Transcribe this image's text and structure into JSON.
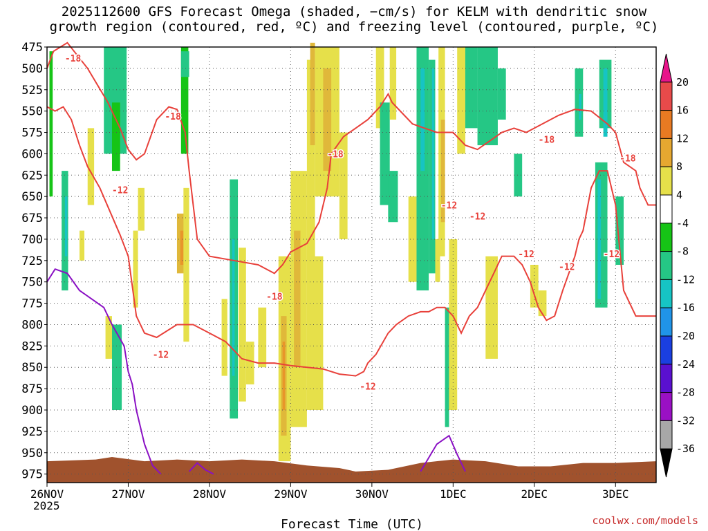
{
  "chart_data": {
    "type": "heatmap",
    "title_line1": "2025112600 GFS Forecast Omega (shaded, −cm/s) for KELM with dendritic snow",
    "title_line2": "growth region (contoured, red, ºC) and freezing level (contoured, purple, ºC)",
    "xlabel": "Forecast Time (UTC)",
    "x_ticks": [
      "26NOV",
      "27NOV",
      "28NOV",
      "29NOV",
      "30NOV",
      "1DEC",
      "2DEC",
      "3DEC"
    ],
    "x_year": "2025",
    "x_range": [
      0,
      7.5
    ],
    "y_ticks": [
      "475",
      "500",
      "525",
      "550",
      "575",
      "600",
      "625",
      "650",
      "675",
      "700",
      "725",
      "750",
      "775",
      "800",
      "825",
      "850",
      "875",
      "900",
      "925",
      "950",
      "975"
    ],
    "y_range": [
      475,
      985
    ],
    "y_inverted": true,
    "grid": "dotted",
    "colorbar": {
      "labels": [
        "20",
        "16",
        "12",
        "8",
        "4",
        "-4",
        "-8",
        "-12",
        "-16",
        "-20",
        "-24",
        "-28",
        "-32",
        "-36"
      ],
      "colors": [
        "#e8158b",
        "#e84a4a",
        "#e87a22",
        "#e6a830",
        "#e6e04a",
        "#ffffff",
        "#16c416",
        "#25c785",
        "#16c4c4",
        "#2094e8",
        "#1a3fe0",
        "#5a10d0",
        "#9a10c4",
        "#a8a8a8",
        "#000000"
      ]
    },
    "omega_regions": [
      {
        "t0": 0.03,
        "t1": 0.07,
        "p0": 480,
        "p1": 650,
        "level": "-4"
      },
      {
        "t0": 0.18,
        "t1": 0.26,
        "p0": 620,
        "p1": 760,
        "level": "-8"
      },
      {
        "t0": 0.22,
        "t1": 0.25,
        "p0": 650,
        "p1": 720,
        "level": "-12"
      },
      {
        "t0": 0.4,
        "t1": 0.46,
        "p0": 690,
        "p1": 725,
        "level": "4"
      },
      {
        "t0": 0.5,
        "t1": 0.58,
        "p0": 570,
        "p1": 660,
        "level": "4"
      },
      {
        "t0": 0.7,
        "t1": 0.98,
        "p0": 475,
        "p1": 600,
        "level": "-8"
      },
      {
        "t0": 0.8,
        "t1": 0.9,
        "p0": 540,
        "p1": 620,
        "level": "-4"
      },
      {
        "t0": 0.72,
        "t1": 0.8,
        "p0": 790,
        "p1": 840,
        "level": "4"
      },
      {
        "t0": 0.8,
        "t1": 0.92,
        "p0": 800,
        "p1": 900,
        "level": "-8"
      },
      {
        "t0": 1.06,
        "t1": 1.12,
        "p0": 690,
        "p1": 780,
        "level": "4"
      },
      {
        "t0": 1.12,
        "t1": 1.2,
        "p0": 640,
        "p1": 690,
        "level": "4"
      },
      {
        "t0": 1.65,
        "t1": 1.74,
        "p0": 475,
        "p1": 600,
        "level": "-4"
      },
      {
        "t0": 1.65,
        "t1": 1.75,
        "p0": 480,
        "p1": 510,
        "level": "-8"
      },
      {
        "t0": 1.6,
        "t1": 1.72,
        "p0": 670,
        "p1": 740,
        "level": "8"
      },
      {
        "t0": 1.64,
        "t1": 1.68,
        "p0": 690,
        "p1": 730,
        "level": "12"
      },
      {
        "t0": 1.68,
        "t1": 1.75,
        "p0": 640,
        "p1": 820,
        "level": "4"
      },
      {
        "t0": 2.15,
        "t1": 2.22,
        "p0": 770,
        "p1": 860,
        "level": "4"
      },
      {
        "t0": 2.25,
        "t1": 2.35,
        "p0": 630,
        "p1": 910,
        "level": "-8"
      },
      {
        "t0": 2.28,
        "t1": 2.31,
        "p0": 700,
        "p1": 860,
        "level": "-12"
      },
      {
        "t0": 2.36,
        "t1": 2.45,
        "p0": 710,
        "p1": 890,
        "level": "4"
      },
      {
        "t0": 2.45,
        "t1": 2.55,
        "p0": 820,
        "p1": 870,
        "level": "4"
      },
      {
        "t0": 2.6,
        "t1": 2.7,
        "p0": 780,
        "p1": 850,
        "level": "4"
      },
      {
        "t0": 2.85,
        "t1": 3.0,
        "p0": 720,
        "p1": 960,
        "level": "4"
      },
      {
        "t0": 2.88,
        "t1": 2.95,
        "p0": 790,
        "p1": 930,
        "level": "8"
      },
      {
        "t0": 2.9,
        "t1": 2.93,
        "p0": 820,
        "p1": 900,
        "level": "12"
      },
      {
        "t0": 3.0,
        "t1": 3.2,
        "p0": 620,
        "p1": 920,
        "level": "4"
      },
      {
        "t0": 3.04,
        "t1": 3.12,
        "p0": 690,
        "p1": 850,
        "level": "8"
      },
      {
        "t0": 3.2,
        "t1": 3.4,
        "p0": 720,
        "p1": 900,
        "level": "4"
      },
      {
        "t0": 3.2,
        "t1": 3.3,
        "p0": 490,
        "p1": 730,
        "level": "4"
      },
      {
        "t0": 3.24,
        "t1": 3.3,
        "p0": 470,
        "p1": 590,
        "level": "8"
      },
      {
        "t0": 3.3,
        "t1": 3.6,
        "p0": 475,
        "p1": 650,
        "level": "4"
      },
      {
        "t0": 3.4,
        "t1": 3.5,
        "p0": 500,
        "p1": 620,
        "level": "8"
      },
      {
        "t0": 3.6,
        "t1": 3.7,
        "p0": 575,
        "p1": 700,
        "level": "4"
      },
      {
        "t0": 4.05,
        "t1": 4.15,
        "p0": 475,
        "p1": 570,
        "level": "4"
      },
      {
        "t0": 4.1,
        "t1": 4.22,
        "p0": 540,
        "p1": 660,
        "level": "-8"
      },
      {
        "t0": 4.2,
        "t1": 4.32,
        "p0": 620,
        "p1": 680,
        "level": "-8"
      },
      {
        "t0": 4.22,
        "t1": 4.3,
        "p0": 475,
        "p1": 560,
        "level": "4"
      },
      {
        "t0": 4.45,
        "t1": 4.55,
        "p0": 650,
        "p1": 750,
        "level": "4"
      },
      {
        "t0": 4.55,
        "t1": 4.7,
        "p0": 475,
        "p1": 760,
        "level": "-8"
      },
      {
        "t0": 4.6,
        "t1": 4.65,
        "p0": 500,
        "p1": 620,
        "level": "-12"
      },
      {
        "t0": 4.7,
        "t1": 4.78,
        "p0": 490,
        "p1": 740,
        "level": "-8"
      },
      {
        "t0": 4.74,
        "t1": 4.77,
        "p0": 500,
        "p1": 700,
        "level": "-12"
      },
      {
        "t0": 4.78,
        "t1": 4.84,
        "p0": 700,
        "p1": 750,
        "level": "4"
      },
      {
        "t0": 4.82,
        "t1": 4.9,
        "p0": 475,
        "p1": 720,
        "level": "4"
      },
      {
        "t0": 4.85,
        "t1": 4.9,
        "p0": 560,
        "p1": 680,
        "level": "8"
      },
      {
        "t0": 4.9,
        "t1": 4.95,
        "p0": 780,
        "p1": 920,
        "level": "-8"
      },
      {
        "t0": 4.95,
        "t1": 5.05,
        "p0": 700,
        "p1": 900,
        "level": "4"
      },
      {
        "t0": 5.1,
        "t1": 5.3,
        "p0": 475,
        "p1": 570,
        "level": "-8"
      },
      {
        "t0": 5.05,
        "t1": 5.15,
        "p0": 475,
        "p1": 600,
        "level": "4"
      },
      {
        "t0": 5.3,
        "t1": 5.55,
        "p0": 475,
        "p1": 590,
        "level": "-8"
      },
      {
        "t0": 5.55,
        "t1": 5.65,
        "p0": 500,
        "p1": 560,
        "level": "-8"
      },
      {
        "t0": 5.4,
        "t1": 5.55,
        "p0": 720,
        "p1": 840,
        "level": "4"
      },
      {
        "t0": 5.75,
        "t1": 5.85,
        "p0": 600,
        "p1": 650,
        "level": "-8"
      },
      {
        "t0": 5.95,
        "t1": 6.05,
        "p0": 730,
        "p1": 780,
        "level": "4"
      },
      {
        "t0": 6.05,
        "t1": 6.15,
        "p0": 760,
        "p1": 790,
        "level": "4"
      },
      {
        "t0": 6.5,
        "t1": 6.6,
        "p0": 500,
        "p1": 580,
        "level": "-8"
      },
      {
        "t0": 6.55,
        "t1": 6.58,
        "p0": 530,
        "p1": 560,
        "level": "-12"
      },
      {
        "t0": 6.75,
        "t1": 6.9,
        "p0": 610,
        "p1": 780,
        "level": "-8"
      },
      {
        "t0": 6.78,
        "t1": 6.82,
        "p0": 630,
        "p1": 770,
        "level": "-12"
      },
      {
        "t0": 6.8,
        "t1": 6.95,
        "p0": 490,
        "p1": 570,
        "level": "-8"
      },
      {
        "t0": 6.85,
        "t1": 6.9,
        "p0": 500,
        "p1": 580,
        "level": "-12"
      },
      {
        "t0": 7.0,
        "t1": 7.1,
        "p0": 650,
        "p1": 730,
        "level": "-8"
      }
    ],
    "dgz_contour_labels": [
      {
        "text": "-18",
        "t": 0.32,
        "p": 488
      },
      {
        "text": "-18",
        "t": 1.55,
        "p": 556
      },
      {
        "text": "-12",
        "t": 0.9,
        "p": 642
      },
      {
        "text": "-12",
        "t": 1.4,
        "p": 835
      },
      {
        "text": "-18",
        "t": 3.55,
        "p": 600
      },
      {
        "text": "-18",
        "t": 2.8,
        "p": 767
      },
      {
        "text": "-12",
        "t": 3.95,
        "p": 872
      },
      {
        "text": "-12",
        "t": 4.95,
        "p": 660
      },
      {
        "text": "-12",
        "t": 5.3,
        "p": 673
      },
      {
        "text": "-18",
        "t": 6.15,
        "p": 583
      },
      {
        "text": "-12",
        "t": 5.9,
        "p": 717
      },
      {
        "text": "-12",
        "t": 6.4,
        "p": 732
      },
      {
        "text": "-12",
        "t": 6.95,
        "p": 717
      },
      {
        "text": "-18",
        "t": 7.15,
        "p": 605
      }
    ],
    "dgz_minus18_top": [
      [
        0.0,
        500
      ],
      [
        0.08,
        480
      ],
      [
        0.25,
        470
      ],
      [
        0.5,
        500
      ],
      [
        0.75,
        540
      ],
      [
        0.9,
        570
      ],
      [
        1.0,
        595
      ],
      [
        1.1,
        607
      ],
      [
        1.2,
        600
      ],
      [
        1.35,
        560
      ],
      [
        1.5,
        545
      ],
      [
        1.6,
        548
      ],
      [
        1.7,
        575
      ],
      [
        1.75,
        620
      ],
      [
        1.85,
        700
      ],
      [
        2.0,
        720
      ],
      [
        2.3,
        725
      ],
      [
        2.6,
        730
      ],
      [
        2.8,
        740
      ],
      [
        2.9,
        730
      ],
      [
        3.0,
        715
      ],
      [
        3.2,
        705
      ],
      [
        3.35,
        680
      ],
      [
        3.45,
        640
      ],
      [
        3.5,
        600
      ],
      [
        3.65,
        580
      ],
      [
        3.8,
        570
      ],
      [
        3.95,
        560
      ],
      [
        4.1,
        545
      ],
      [
        4.2,
        530
      ],
      [
        4.25,
        540
      ],
      [
        4.3,
        545
      ],
      [
        4.5,
        565
      ],
      [
        4.65,
        570
      ],
      [
        4.8,
        575
      ],
      [
        5.0,
        575
      ],
      [
        5.15,
        590
      ],
      [
        5.3,
        595
      ],
      [
        5.45,
        585
      ],
      [
        5.6,
        575
      ],
      [
        5.75,
        570
      ],
      [
        5.9,
        575
      ],
      [
        6.0,
        570
      ],
      [
        6.3,
        555
      ],
      [
        6.5,
        548
      ],
      [
        6.7,
        550
      ],
      [
        6.9,
        565
      ],
      [
        7.0,
        575
      ],
      [
        7.1,
        610
      ],
      [
        7.25,
        620
      ],
      [
        7.3,
        640
      ],
      [
        7.4,
        660
      ],
      [
        7.5,
        660
      ]
    ],
    "dgz_minus12_bottom": [
      [
        0.0,
        545
      ],
      [
        0.1,
        550
      ],
      [
        0.2,
        545
      ],
      [
        0.3,
        560
      ],
      [
        0.4,
        590
      ],
      [
        0.5,
        615
      ],
      [
        0.65,
        640
      ],
      [
        0.9,
        695
      ],
      [
        1.0,
        720
      ],
      [
        1.1,
        790
      ],
      [
        1.2,
        810
      ],
      [
        1.35,
        815
      ],
      [
        1.6,
        800
      ],
      [
        1.8,
        800
      ],
      [
        2.0,
        810
      ],
      [
        2.2,
        820
      ],
      [
        2.4,
        840
      ],
      [
        2.6,
        845
      ],
      [
        2.8,
        845
      ],
      [
        3.0,
        848
      ],
      [
        3.2,
        850
      ],
      [
        3.4,
        852
      ],
      [
        3.6,
        858
      ],
      [
        3.8,
        860
      ],
      [
        3.9,
        855
      ],
      [
        3.95,
        845
      ],
      [
        4.05,
        835
      ],
      [
        4.2,
        810
      ],
      [
        4.3,
        800
      ],
      [
        4.45,
        790
      ],
      [
        4.6,
        785
      ],
      [
        4.7,
        785
      ],
      [
        4.8,
        780
      ],
      [
        4.9,
        780
      ],
      [
        5.0,
        790
      ],
      [
        5.1,
        810
      ],
      [
        5.2,
        790
      ],
      [
        5.3,
        780
      ],
      [
        5.4,
        760
      ],
      [
        5.5,
        740
      ],
      [
        5.6,
        720
      ],
      [
        5.75,
        720
      ],
      [
        5.85,
        730
      ],
      [
        5.95,
        750
      ],
      [
        6.05,
        780
      ],
      [
        6.15,
        795
      ],
      [
        6.25,
        790
      ],
      [
        6.35,
        760
      ],
      [
        6.5,
        720
      ],
      [
        6.55,
        700
      ],
      [
        6.6,
        690
      ],
      [
        6.7,
        640
      ],
      [
        6.8,
        620
      ],
      [
        6.9,
        620
      ],
      [
        7.0,
        660
      ],
      [
        7.1,
        760
      ],
      [
        7.25,
        790
      ],
      [
        7.4,
        790
      ],
      [
        7.5,
        790
      ]
    ],
    "freezing_level": [
      [
        0.0,
        750
      ],
      [
        0.1,
        735
      ],
      [
        0.25,
        740
      ],
      [
        0.4,
        760
      ],
      [
        0.55,
        770
      ],
      [
        0.7,
        780
      ],
      [
        0.8,
        800
      ],
      [
        0.95,
        825
      ],
      [
        1.0,
        855
      ],
      [
        1.05,
        870
      ],
      [
        1.1,
        900
      ],
      [
        1.2,
        940
      ],
      [
        1.3,
        965
      ],
      [
        1.4,
        975
      ]
    ],
    "freezing_level_2": [
      [
        1.75,
        972
      ],
      [
        1.85,
        962
      ],
      [
        1.95,
        970
      ],
      [
        2.05,
        975
      ]
    ],
    "freezing_level_3": [
      [
        4.6,
        972
      ],
      [
        4.8,
        940
      ],
      [
        4.95,
        930
      ],
      [
        5.05,
        952
      ],
      [
        5.15,
        972
      ]
    ],
    "terrain_surface": [
      [
        0.0,
        960
      ],
      [
        0.6,
        958
      ],
      [
        0.8,
        955
      ],
      [
        1.2,
        960
      ],
      [
        1.6,
        958
      ],
      [
        2.0,
        960
      ],
      [
        2.4,
        958
      ],
      [
        2.8,
        960
      ],
      [
        3.2,
        965
      ],
      [
        3.6,
        968
      ],
      [
        3.8,
        972
      ],
      [
        4.2,
        970
      ],
      [
        4.6,
        962
      ],
      [
        5.0,
        958
      ],
      [
        5.4,
        960
      ],
      [
        5.8,
        966
      ],
      [
        6.2,
        966
      ],
      [
        6.6,
        962
      ],
      [
        7.0,
        962
      ],
      [
        7.5,
        960
      ]
    ]
  },
  "credit": "coolwx.com/models"
}
